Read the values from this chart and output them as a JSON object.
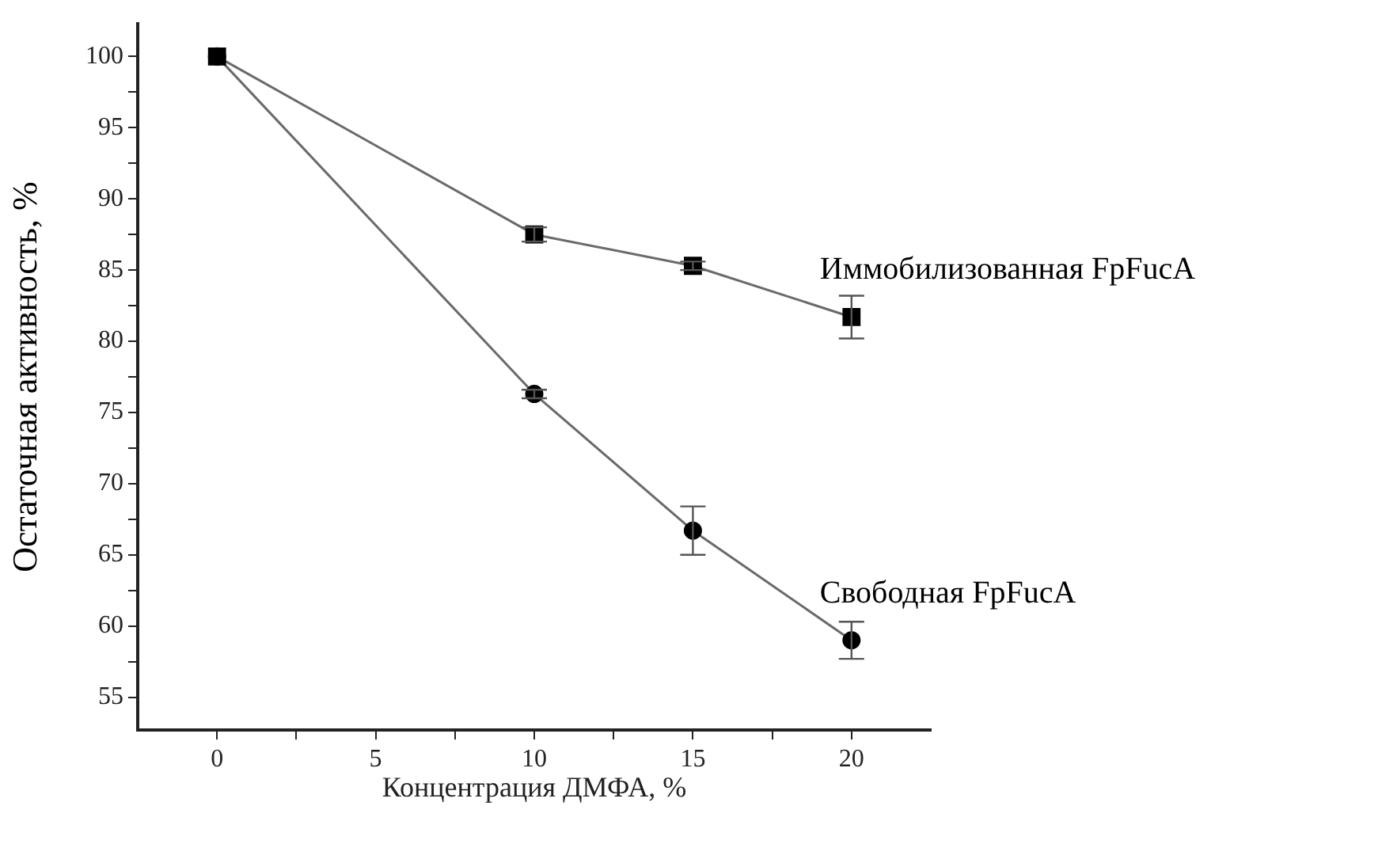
{
  "chart_data": {
    "type": "line",
    "xlabel": "Концентрация ДМФА, %",
    "ylabel": "Остаточная активность, %",
    "x": [
      0,
      10,
      15,
      20
    ],
    "series": [
      {
        "name": "Иммобилизованная FpFucA",
        "color": "#000000",
        "marker": "square",
        "values": [
          100,
          87.5,
          85.3,
          81.7
        ],
        "errors": [
          null,
          0.5,
          0.3,
          1.5
        ]
      },
      {
        "name": "Свободная FpFucA",
        "color": "#000000",
        "marker": "circle",
        "values": [
          100,
          76.3,
          66.7,
          59.0
        ],
        "errors": [
          null,
          0.3,
          1.7,
          1.3
        ]
      }
    ],
    "xlim": [
      -2.5,
      22.5
    ],
    "xticks": [
      0,
      {
        "value": 2.5,
        "label": null
      },
      5,
      {
        "value": 7.5,
        "label": null
      },
      10,
      {
        "value": 12.5,
        "label": null
      },
      15,
      {
        "value": 17.5,
        "label": null
      },
      20
    ],
    "ylim": [
      52.7,
      102.3
    ],
    "yticks": [
      55,
      {
        "value": 57.5,
        "label": null
      },
      60,
      {
        "value": 62.5,
        "label": null
      },
      65,
      {
        "value": 67.5,
        "label": null
      },
      70,
      {
        "value": 72.5,
        "label": null
      },
      75,
      {
        "value": 77.5,
        "label": null
      },
      80,
      {
        "value": 82.5,
        "label": null
      },
      85,
      {
        "value": 87.5,
        "label": null
      },
      90,
      {
        "value": 92.5,
        "label": null
      },
      95,
      {
        "value": 97.5,
        "label": null
      },
      100
    ],
    "grid": false,
    "legend": false,
    "line_style": "solid"
  }
}
